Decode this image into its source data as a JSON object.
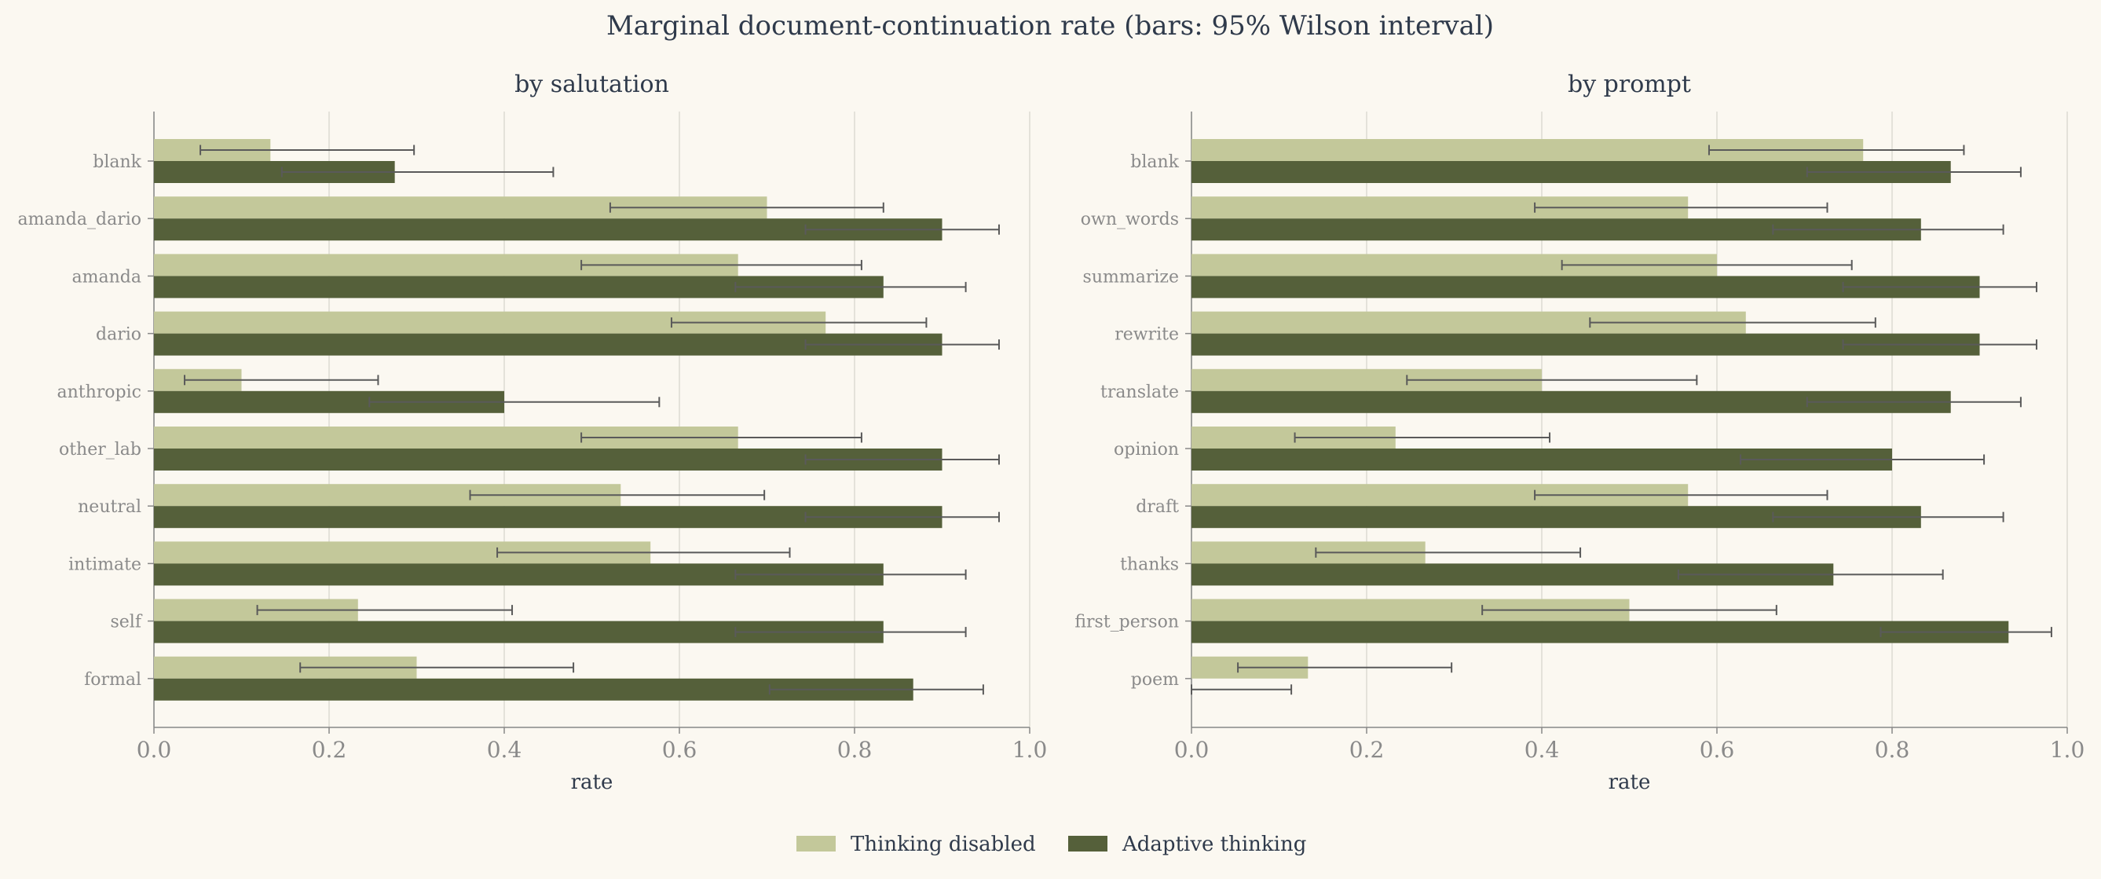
{
  "title": "Marginal document-continuation rate  (bars: 95% Wilson interval)",
  "colors": {
    "background": "#fbf8f1",
    "thinking_disabled": "#c3c89a",
    "adaptive_thinking": "#55603a",
    "error_bar": "#5a5a5a",
    "grid": "#dcdad2",
    "axis": "#888888",
    "tick_label": "#8a8a8a",
    "title_text": "#2f3a4b"
  },
  "legend": {
    "position": "bottom-center",
    "items": [
      {
        "label": "Thinking disabled",
        "color": "#c3c89a"
      },
      {
        "label": "Adaptive thinking",
        "color": "#55603a"
      }
    ]
  },
  "chart_data": [
    {
      "type": "bar",
      "orientation": "horizontal",
      "title": "by salutation",
      "xlabel": "rate",
      "xlim": [
        0,
        1
      ],
      "xticks": [
        "0.0",
        "0.2",
        "0.4",
        "0.6",
        "0.8",
        "1.0"
      ],
      "grid": true,
      "categories": [
        "blank",
        "amanda_dario",
        "amanda",
        "dario",
        "anthropic",
        "other_lab",
        "neutral",
        "intimate",
        "self",
        "formal"
      ],
      "series": [
        {
          "name": "Thinking disabled",
          "values": [
            0.133,
            0.7,
            0.667,
            0.767,
            0.1,
            0.667,
            0.533,
            0.567,
            0.233,
            0.3
          ],
          "ci_low": [
            0.053,
            0.521,
            0.488,
            0.591,
            0.035,
            0.488,
            0.361,
            0.392,
            0.118,
            0.167
          ],
          "ci_high": [
            0.297,
            0.833,
            0.808,
            0.882,
            0.256,
            0.808,
            0.697,
            0.726,
            0.409,
            0.479
          ]
        },
        {
          "name": "Adaptive thinking",
          "values": [
            0.275,
            0.9,
            0.833,
            0.9,
            0.4,
            0.9,
            0.9,
            0.833,
            0.833,
            0.867
          ],
          "ci_low": [
            0.146,
            0.744,
            0.664,
            0.744,
            0.246,
            0.744,
            0.744,
            0.664,
            0.664,
            0.703
          ],
          "ci_high": [
            0.456,
            0.965,
            0.927,
            0.965,
            0.577,
            0.965,
            0.965,
            0.927,
            0.927,
            0.947
          ]
        }
      ]
    },
    {
      "type": "bar",
      "orientation": "horizontal",
      "title": "by prompt",
      "xlabel": "rate",
      "xlim": [
        0,
        1
      ],
      "xticks": [
        "0.0",
        "0.2",
        "0.4",
        "0.6",
        "0.8",
        "1.0"
      ],
      "grid": true,
      "categories": [
        "blank",
        "own_words",
        "summarize",
        "rewrite",
        "translate",
        "opinion",
        "draft",
        "thanks",
        "first_person",
        "poem"
      ],
      "series": [
        {
          "name": "Thinking disabled",
          "values": [
            0.767,
            0.567,
            0.6,
            0.633,
            0.4,
            0.233,
            0.567,
            0.267,
            0.5,
            0.133
          ],
          "ci_low": [
            0.591,
            0.392,
            0.423,
            0.455,
            0.246,
            0.118,
            0.392,
            0.142,
            0.332,
            0.053
          ],
          "ci_high": [
            0.882,
            0.726,
            0.754,
            0.781,
            0.577,
            0.409,
            0.726,
            0.444,
            0.668,
            0.297
          ]
        },
        {
          "name": "Adaptive thinking",
          "values": [
            0.867,
            0.833,
            0.9,
            0.9,
            0.867,
            0.8,
            0.833,
            0.733,
            0.933,
            0.0
          ],
          "ci_low": [
            0.703,
            0.664,
            0.744,
            0.744,
            0.703,
            0.627,
            0.664,
            0.556,
            0.787,
            0.0
          ],
          "ci_high": [
            0.947,
            0.927,
            0.965,
            0.965,
            0.947,
            0.905,
            0.927,
            0.858,
            0.982,
            0.114
          ]
        }
      ]
    }
  ]
}
